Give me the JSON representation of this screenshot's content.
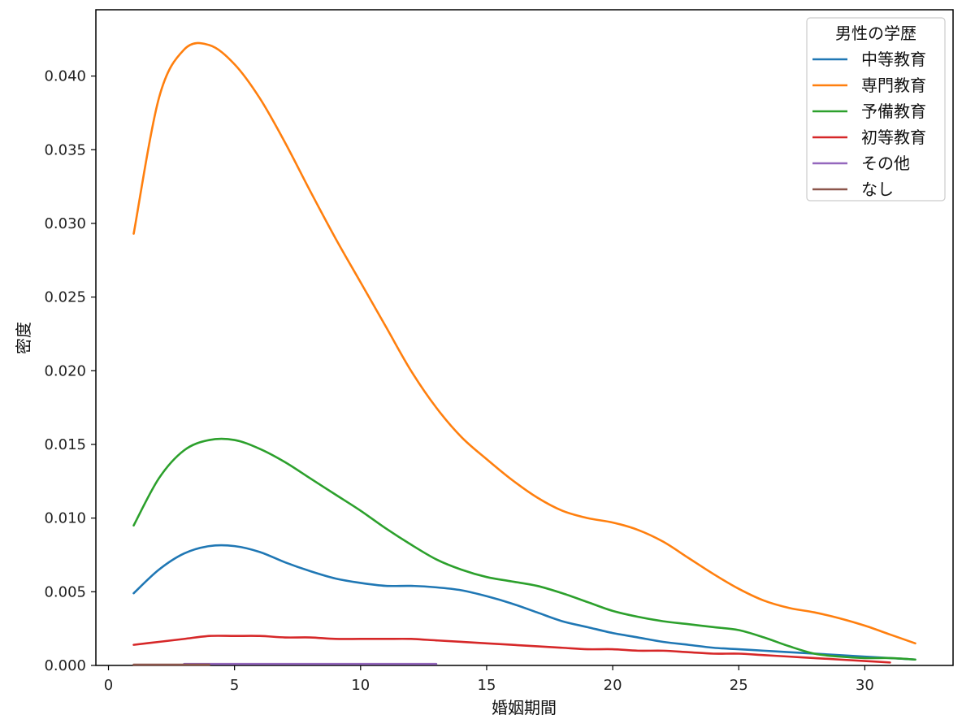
{
  "chart_data": {
    "type": "line",
    "xlabel": "婚姻期間",
    "ylabel": "密度",
    "xlim": [
      -0.5,
      33.5
    ],
    "ylim": [
      0,
      0.0445
    ],
    "xticks": [
      0,
      5,
      10,
      15,
      20,
      25,
      30
    ],
    "xtick_labels": [
      "0",
      "5",
      "10",
      "15",
      "20",
      "25",
      "30"
    ],
    "yticks": [
      0,
      0.005,
      0.01,
      0.015,
      0.02,
      0.025,
      0.03,
      0.035,
      0.04
    ],
    "ytick_labels": [
      "0.000",
      "0.005",
      "0.010",
      "0.015",
      "0.020",
      "0.025",
      "0.030",
      "0.035",
      "0.040"
    ],
    "grid": false,
    "legend": {
      "title": "男性の学歴",
      "placement": "top-right"
    },
    "series": [
      {
        "name": "中等教育",
        "color": "#1f77b4",
        "x": [
          1,
          2,
          3,
          4,
          5,
          6,
          7,
          8,
          9,
          10,
          11,
          12,
          13,
          14,
          15,
          16,
          17,
          18,
          19,
          20,
          21,
          22,
          23,
          24,
          25,
          26,
          27,
          28,
          29,
          30,
          31,
          32
        ],
        "y": [
          0.0049,
          0.0065,
          0.0076,
          0.0081,
          0.0081,
          0.0077,
          0.007,
          0.0064,
          0.0059,
          0.0056,
          0.0054,
          0.0054,
          0.0053,
          0.0051,
          0.0047,
          0.0042,
          0.0036,
          0.003,
          0.0026,
          0.0022,
          0.0019,
          0.0016,
          0.0014,
          0.0012,
          0.0011,
          0.001,
          0.0009,
          0.0008,
          0.0007,
          0.0006,
          0.0005,
          0.0004
        ]
      },
      {
        "name": "専門教育",
        "color": "#ff7f0e",
        "x": [
          1,
          2,
          3,
          4,
          5,
          6,
          7,
          8,
          9,
          10,
          11,
          12,
          13,
          14,
          15,
          16,
          17,
          18,
          19,
          20,
          21,
          22,
          23,
          24,
          25,
          26,
          27,
          28,
          29,
          30,
          31,
          32
        ],
        "y": [
          0.0293,
          0.0385,
          0.0418,
          0.0421,
          0.0408,
          0.0385,
          0.0355,
          0.0322,
          0.029,
          0.026,
          0.023,
          0.02,
          0.0175,
          0.0155,
          0.014,
          0.0126,
          0.0114,
          0.0105,
          0.01,
          0.0097,
          0.0092,
          0.0084,
          0.0073,
          0.0062,
          0.0052,
          0.0044,
          0.0039,
          0.0036,
          0.0032,
          0.0027,
          0.0021,
          0.0015
        ]
      },
      {
        "name": "予備教育",
        "color": "#2ca02c",
        "x": [
          1,
          2,
          3,
          4,
          5,
          6,
          7,
          8,
          9,
          10,
          11,
          12,
          13,
          14,
          15,
          16,
          17,
          18,
          19,
          20,
          21,
          22,
          23,
          24,
          25,
          26,
          27,
          28,
          29,
          30,
          31,
          32
        ],
        "y": [
          0.0095,
          0.0127,
          0.0146,
          0.0153,
          0.0153,
          0.0147,
          0.0138,
          0.0127,
          0.0116,
          0.0105,
          0.0093,
          0.0082,
          0.0072,
          0.0065,
          0.006,
          0.0057,
          0.0054,
          0.0049,
          0.0043,
          0.0037,
          0.0033,
          0.003,
          0.0028,
          0.0026,
          0.0024,
          0.0019,
          0.0013,
          0.0008,
          0.0006,
          0.0005,
          0.0005,
          0.0004
        ]
      },
      {
        "name": "初等教育",
        "color": "#d62728",
        "x": [
          1,
          2,
          3,
          4,
          5,
          6,
          7,
          8,
          9,
          10,
          11,
          12,
          13,
          14,
          15,
          16,
          17,
          18,
          19,
          20,
          21,
          22,
          23,
          24,
          25,
          26,
          27,
          28,
          29,
          30,
          31
        ],
        "y": [
          0.0014,
          0.0016,
          0.0018,
          0.002,
          0.002,
          0.002,
          0.0019,
          0.0019,
          0.0018,
          0.0018,
          0.0018,
          0.0018,
          0.0017,
          0.0016,
          0.0015,
          0.0014,
          0.0013,
          0.0012,
          0.0011,
          0.0011,
          0.001,
          0.001,
          0.0009,
          0.0008,
          0.0008,
          0.0007,
          0.0006,
          0.0005,
          0.0004,
          0.0003,
          0.0002
        ]
      },
      {
        "name": "その他",
        "color": "#9467bd",
        "x": [
          3,
          5,
          7,
          9,
          11,
          13
        ],
        "y": [
          0.0001,
          0.0001,
          0.0001,
          0.0001,
          0.0001,
          0.0001
        ]
      },
      {
        "name": "なし",
        "color": "#8c564b",
        "x": [
          1,
          2,
          3,
          4
        ],
        "y": [
          5e-05,
          5e-05,
          5e-05,
          5e-05
        ]
      }
    ]
  }
}
